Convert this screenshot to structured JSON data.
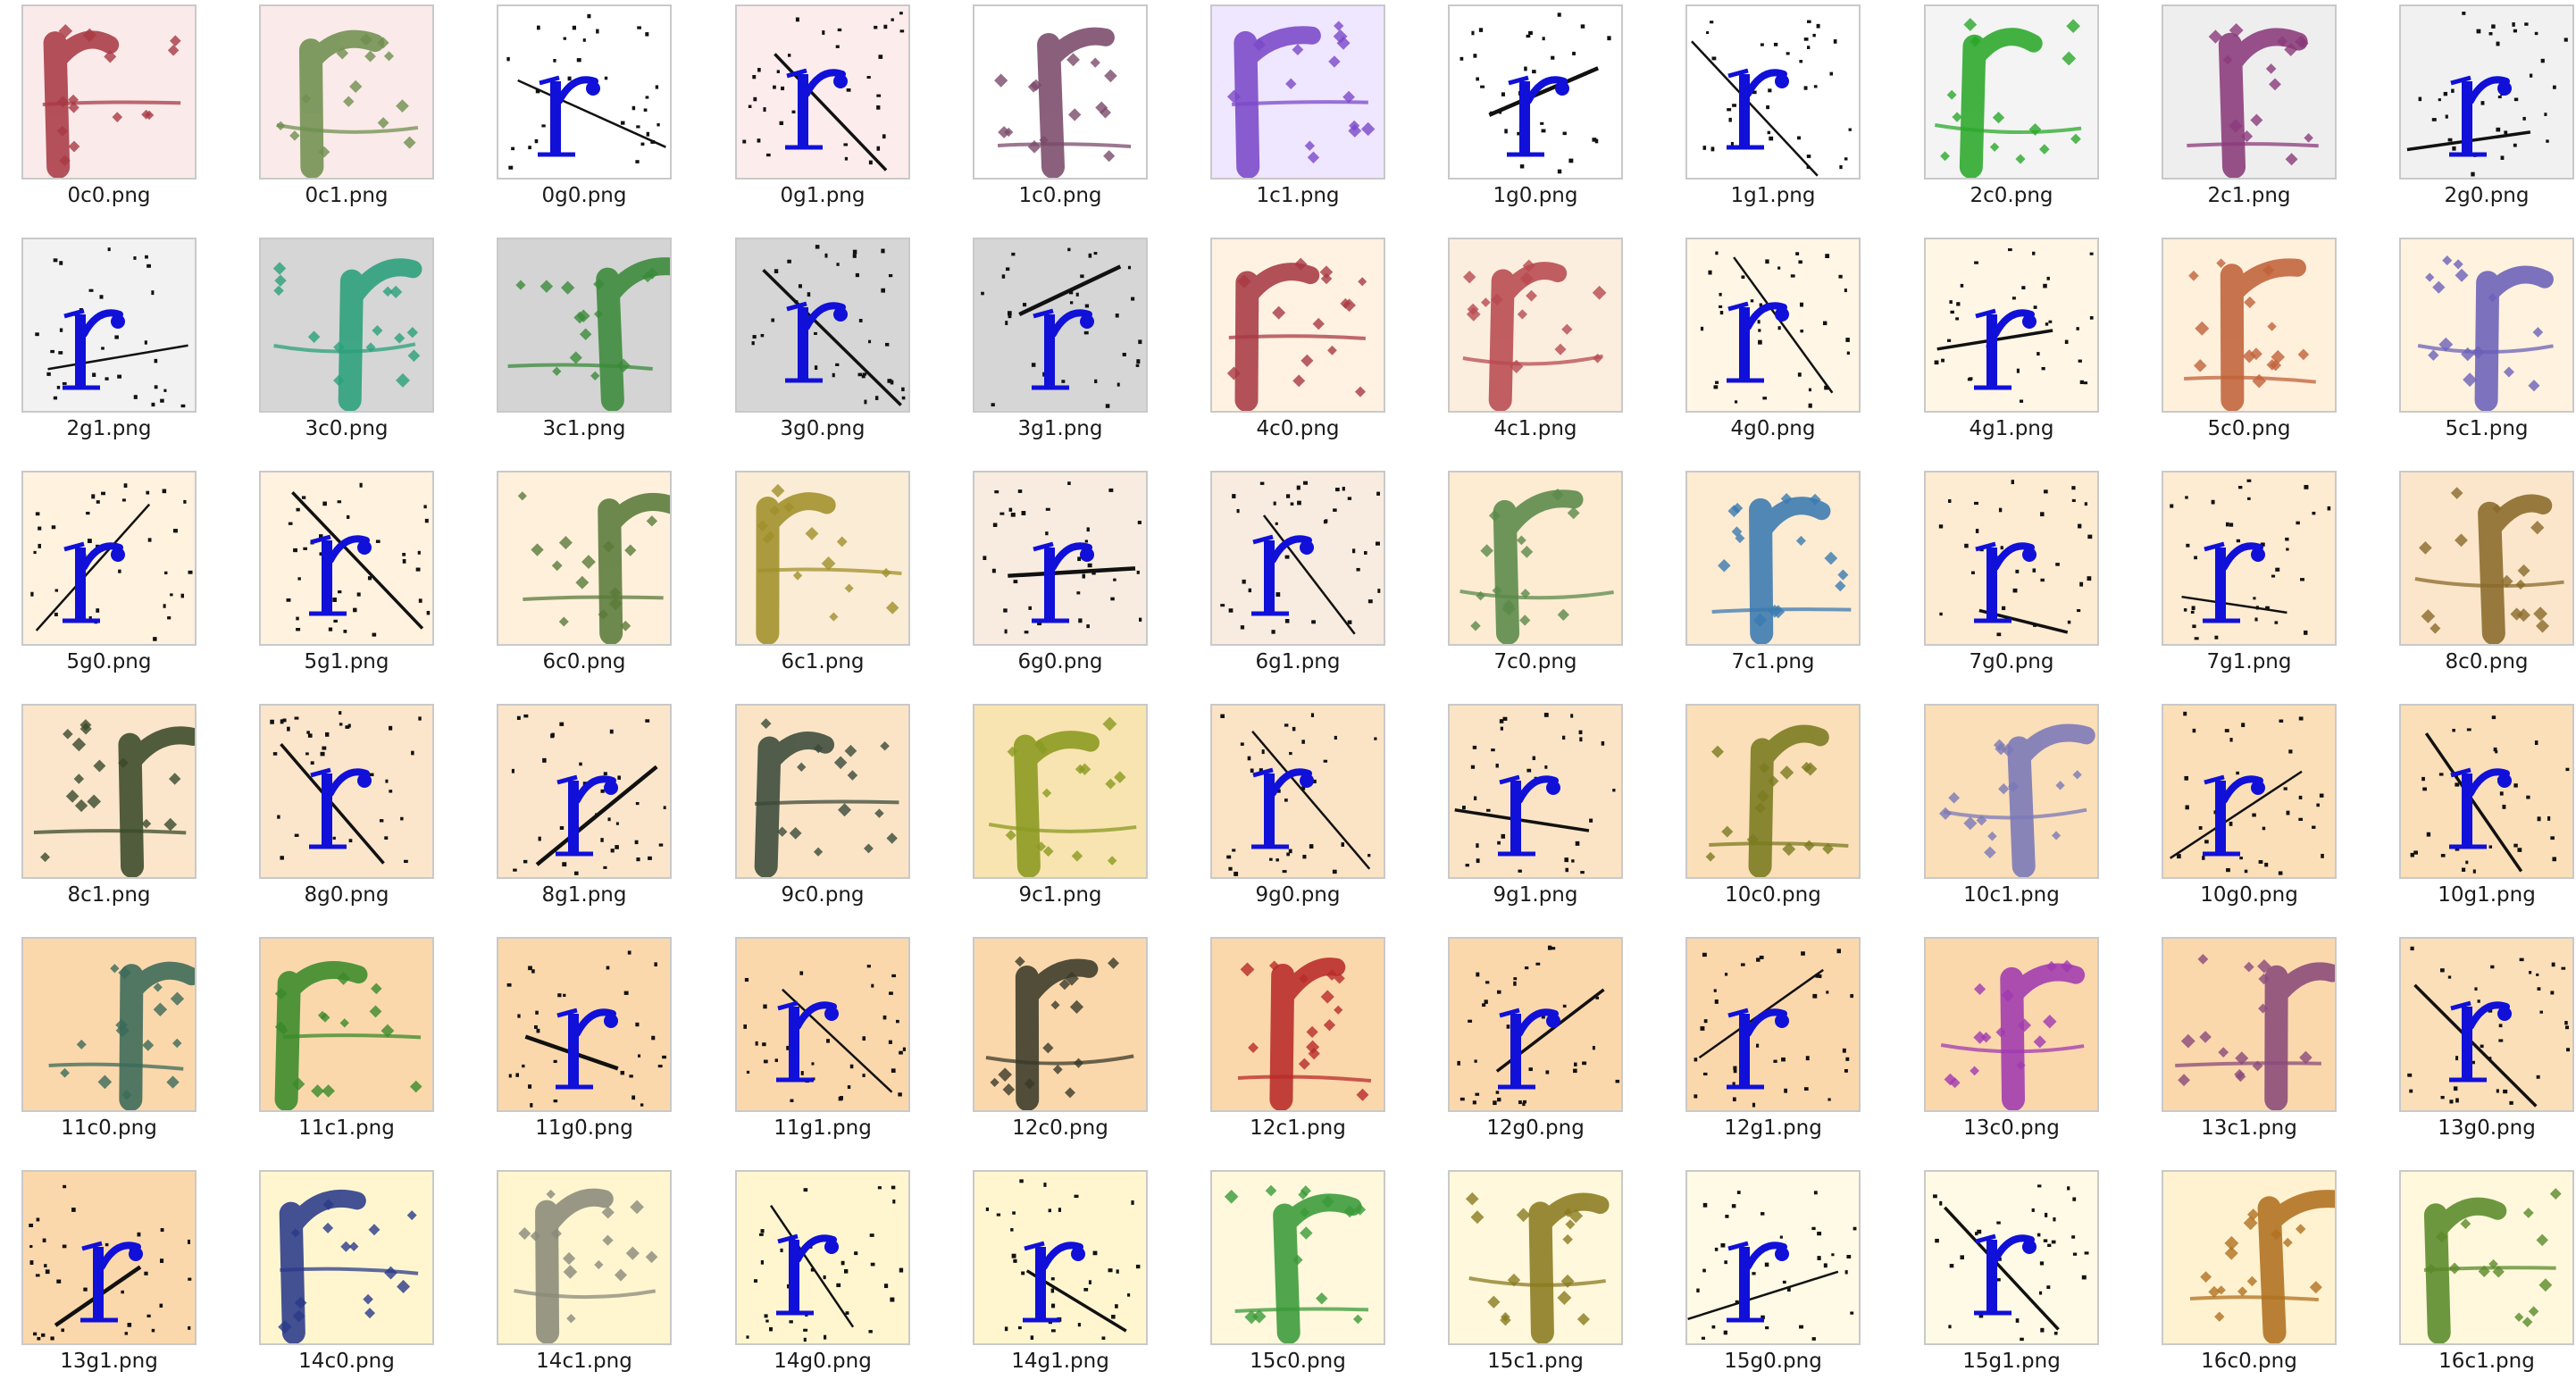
{
  "files": [
    {
      "name": "0c0.png",
      "kind": "c",
      "bg": "#fbeaea",
      "ink": "#a83a44",
      "variant": 0
    },
    {
      "name": "0c1.png",
      "kind": "c",
      "bg": "#fbeaea",
      "ink": "#6f8f4f",
      "variant": 1
    },
    {
      "name": "0g0.png",
      "kind": "g",
      "bg": "#ffffff",
      "ink": "#1010d8",
      "variant": 0
    },
    {
      "name": "0g1.png",
      "kind": "g",
      "bg": "#fdecec",
      "ink": "#1010d8",
      "variant": 1
    },
    {
      "name": "1c0.png",
      "kind": "c",
      "bg": "#ffffff",
      "ink": "#7a4a6a",
      "variant": 2
    },
    {
      "name": "1c1.png",
      "kind": "c",
      "bg": "#efe6ff",
      "ink": "#7a48c8",
      "variant": 0
    },
    {
      "name": "1g0.png",
      "kind": "g",
      "bg": "#ffffff",
      "ink": "#1010d8",
      "variant": 2
    },
    {
      "name": "1g1.png",
      "kind": "g",
      "bg": "#ffffff",
      "ink": "#1010d8",
      "variant": 3
    },
    {
      "name": "2c0.png",
      "kind": "c",
      "bg": "#f4f4f4",
      "ink": "#2aa82a",
      "variant": 1
    },
    {
      "name": "2c1.png",
      "kind": "c",
      "bg": "#eeeeee",
      "ink": "#8a3a7a",
      "variant": 2
    },
    {
      "name": "2g0.png",
      "kind": "g",
      "bg": "#f1f1f1",
      "ink": "#1010d8",
      "variant": 4
    },
    {
      "name": "2g1.png",
      "kind": "g",
      "bg": "#f2f2f2",
      "ink": "#1010d8",
      "variant": 0
    },
    {
      "name": "3c0.png",
      "kind": "c",
      "bg": "#d6d6d6",
      "ink": "#2aa07a",
      "variant": 3
    },
    {
      "name": "3c1.png",
      "kind": "c",
      "bg": "#d4d4d4",
      "ink": "#3a8a3a",
      "variant": 4
    },
    {
      "name": "3g0.png",
      "kind": "g",
      "bg": "#d6d6d6",
      "ink": "#1010d8",
      "variant": 1
    },
    {
      "name": "3g1.png",
      "kind": "g",
      "bg": "#d6d6d6",
      "ink": "#1010d8",
      "variant": 2
    },
    {
      "name": "4c0.png",
      "kind": "c",
      "bg": "#fff2e2",
      "ink": "#a83a44",
      "variant": 0
    },
    {
      "name": "4c1.png",
      "kind": "c",
      "bg": "#fbeede",
      "ink": "#b84a50",
      "variant": 1
    },
    {
      "name": "4g0.png",
      "kind": "g",
      "bg": "#fff6e6",
      "ink": "#1010d8",
      "variant": 3
    },
    {
      "name": "4g1.png",
      "kind": "g",
      "bg": "#fff6e6",
      "ink": "#1010d8",
      "variant": 4
    },
    {
      "name": "5c0.png",
      "kind": "c",
      "bg": "#fff0dc",
      "ink": "#c0623a",
      "variant": 2
    },
    {
      "name": "5c1.png",
      "kind": "c",
      "bg": "#fff2de",
      "ink": "#6a60b8",
      "variant": 3
    },
    {
      "name": "5g0.png",
      "kind": "g",
      "bg": "#fff2de",
      "ink": "#1010d8",
      "variant": 0
    },
    {
      "name": "5g1.png",
      "kind": "g",
      "bg": "#fff2de",
      "ink": "#1010d8",
      "variant": 1
    },
    {
      "name": "6c0.png",
      "kind": "c",
      "bg": "#fff0dc",
      "ink": "#5a7a3a",
      "variant": 4
    },
    {
      "name": "6c1.png",
      "kind": "c",
      "bg": "#fbecd6",
      "ink": "#a0902a",
      "variant": 0
    },
    {
      "name": "6g0.png",
      "kind": "g",
      "bg": "#f8ece0",
      "ink": "#1010d8",
      "variant": 2
    },
    {
      "name": "6g1.png",
      "kind": "g",
      "bg": "#f8ece0",
      "ink": "#1010d8",
      "variant": 3
    },
    {
      "name": "7c0.png",
      "kind": "c",
      "bg": "#fdebd2",
      "ink": "#5a8a4a",
      "variant": 1
    },
    {
      "name": "7c1.png",
      "kind": "c",
      "bg": "#fdebd2",
      "ink": "#3a7ab0",
      "variant": 2
    },
    {
      "name": "7g0.png",
      "kind": "g",
      "bg": "#fdebd2",
      "ink": "#1010d8",
      "variant": 4
    },
    {
      "name": "7g1.png",
      "kind": "g",
      "bg": "#fdebd2",
      "ink": "#1010d8",
      "variant": 0
    },
    {
      "name": "8c0.png",
      "kind": "c",
      "bg": "#fbe6cc",
      "ink": "#8a6a2a",
      "variant": 3
    },
    {
      "name": "8c1.png",
      "kind": "c",
      "bg": "#fbe6cc",
      "ink": "#3a4a2a",
      "variant": 4
    },
    {
      "name": "8g0.png",
      "kind": "g",
      "bg": "#fbe6cc",
      "ink": "#1010d8",
      "variant": 1
    },
    {
      "name": "8g1.png",
      "kind": "g",
      "bg": "#fbe6cc",
      "ink": "#1010d8",
      "variant": 2
    },
    {
      "name": "9c0.png",
      "kind": "c",
      "bg": "#fbe4c6",
      "ink": "#3a4a3a",
      "variant": 0
    },
    {
      "name": "9c1.png",
      "kind": "c",
      "bg": "#f8e4b0",
      "ink": "#8a9a20",
      "variant": 1
    },
    {
      "name": "9g0.png",
      "kind": "g",
      "bg": "#fbe4c6",
      "ink": "#1010d8",
      "variant": 3
    },
    {
      "name": "9g1.png",
      "kind": "g",
      "bg": "#fbe4c6",
      "ink": "#1010d8",
      "variant": 4
    },
    {
      "name": "10c0.png",
      "kind": "c",
      "bg": "#fbdfb8",
      "ink": "#7a7a20",
      "variant": 2
    },
    {
      "name": "10c1.png",
      "kind": "c",
      "bg": "#fbdfb8",
      "ink": "#7a78b8",
      "variant": 3
    },
    {
      "name": "10g0.png",
      "kind": "g",
      "bg": "#fbdfb8",
      "ink": "#1010d8",
      "variant": 0
    },
    {
      "name": "10g1.png",
      "kind": "g",
      "bg": "#fbdfb8",
      "ink": "#1010d8",
      "variant": 1
    },
    {
      "name": "11c0.png",
      "kind": "c",
      "bg": "#fbd8ac",
      "ink": "#3a6a5a",
      "variant": 4
    },
    {
      "name": "11c1.png",
      "kind": "c",
      "bg": "#fbd8ac",
      "ink": "#3a8a2a",
      "variant": 0
    },
    {
      "name": "11g0.png",
      "kind": "g",
      "bg": "#fbd8ac",
      "ink": "#1010d8",
      "variant": 2
    },
    {
      "name": "11g1.png",
      "kind": "g",
      "bg": "#fbd8ac",
      "ink": "#1010d8",
      "variant": 3
    },
    {
      "name": "12c0.png",
      "kind": "c",
      "bg": "#fbd8ac",
      "ink": "#3a3a2a",
      "variant": 1
    },
    {
      "name": "12c1.png",
      "kind": "c",
      "bg": "#fbd8ac",
      "ink": "#b82a2a",
      "variant": 2
    },
    {
      "name": "12g0.png",
      "kind": "g",
      "bg": "#fbd8ac",
      "ink": "#1010d8",
      "variant": 4
    },
    {
      "name": "12g1.png",
      "kind": "g",
      "bg": "#fbd8ac",
      "ink": "#1010d8",
      "variant": 0
    },
    {
      "name": "13c0.png",
      "kind": "c",
      "bg": "#fbd8ac",
      "ink": "#a03ab0",
      "variant": 3
    },
    {
      "name": "13c1.png",
      "kind": "c",
      "bg": "#fbd8ac",
      "ink": "#8a4a7a",
      "variant": 4
    },
    {
      "name": "13g0.png",
      "kind": "g",
      "bg": "#fbdfb8",
      "ink": "#1010d8",
      "variant": 1
    },
    {
      "name": "13g1.png",
      "kind": "g",
      "bg": "#fbd8ac",
      "ink": "#1010d8",
      "variant": 2
    },
    {
      "name": "14c0.png",
      "kind": "c",
      "bg": "#fff6d0",
      "ink": "#2a3a8a",
      "variant": 0
    },
    {
      "name": "14c1.png",
      "kind": "c",
      "bg": "#fff6d0",
      "ink": "#8a8a7a",
      "variant": 1
    },
    {
      "name": "14g0.png",
      "kind": "g",
      "bg": "#fff6d0",
      "ink": "#1010d8",
      "variant": 3
    },
    {
      "name": "14g1.png",
      "kind": "g",
      "bg": "#fff6d0",
      "ink": "#1010d8",
      "variant": 4
    },
    {
      "name": "15c0.png",
      "kind": "c",
      "bg": "#fff8dc",
      "ink": "#3a9a3a",
      "variant": 2
    },
    {
      "name": "15c1.png",
      "kind": "c",
      "bg": "#fff8dc",
      "ink": "#8a7a20",
      "variant": 3
    },
    {
      "name": "15g0.png",
      "kind": "g",
      "bg": "#fffae6",
      "ink": "#1010d8",
      "variant": 0
    },
    {
      "name": "15g1.png",
      "kind": "g",
      "bg": "#fffae6",
      "ink": "#1010d8",
      "variant": 1
    },
    {
      "name": "16c0.png",
      "kind": "c",
      "bg": "#fff2d0",
      "ink": "#b07020",
      "variant": 4
    },
    {
      "name": "16c1.png",
      "kind": "c",
      "bg": "#fff8dc",
      "ink": "#5a8a2a",
      "variant": 0
    }
  ]
}
